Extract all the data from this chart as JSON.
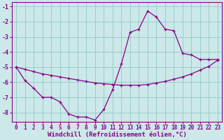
{
  "xlabel": "Windchill (Refroidissement éolien,°C)",
  "bg_color": "#cce8e8",
  "line_color": "#880088",
  "grid_color": "#99cccc",
  "spine_color": "#880088",
  "xlim": [
    -0.5,
    23.5
  ],
  "ylim": [
    -8.6,
    -0.7
  ],
  "yticks": [
    -8,
    -7,
    -6,
    -5,
    -4,
    -3,
    -2,
    -1
  ],
  "xticks": [
    0,
    1,
    2,
    3,
    4,
    5,
    6,
    7,
    8,
    9,
    10,
    11,
    12,
    13,
    14,
    15,
    16,
    17,
    18,
    19,
    20,
    21,
    22,
    23
  ],
  "line1_x": [
    0,
    1,
    2,
    3,
    4,
    5,
    6,
    7,
    8,
    9,
    10,
    11,
    12,
    13,
    14,
    15,
    16,
    17,
    18,
    19,
    20,
    21,
    22,
    23
  ],
  "line1_y": [
    -5.0,
    -5.9,
    -6.4,
    -7.0,
    -7.0,
    -7.3,
    -8.1,
    -8.3,
    -8.3,
    -8.5,
    -7.8,
    -6.5,
    -4.8,
    -2.7,
    -2.5,
    -1.3,
    -1.7,
    -2.5,
    -2.6,
    -4.1,
    -4.2,
    -4.5,
    -4.5,
    -4.5
  ],
  "line2_x": [
    0,
    1,
    2,
    3,
    4,
    5,
    6,
    7,
    8,
    9,
    10,
    11,
    12,
    13,
    14,
    15,
    16,
    17,
    18,
    19,
    20,
    21,
    22,
    23
  ],
  "line2_y": [
    -5.0,
    -5.15,
    -5.3,
    -5.45,
    -5.55,
    -5.65,
    -5.75,
    -5.85,
    -5.95,
    -6.05,
    -6.1,
    -6.15,
    -6.2,
    -6.2,
    -6.2,
    -6.15,
    -6.05,
    -5.95,
    -5.8,
    -5.65,
    -5.45,
    -5.2,
    -4.95,
    -4.55
  ],
  "tick_fontsize": 5.5,
  "xlabel_fontsize": 6.5,
  "marker_size": 3.5,
  "linewidth": 0.9
}
